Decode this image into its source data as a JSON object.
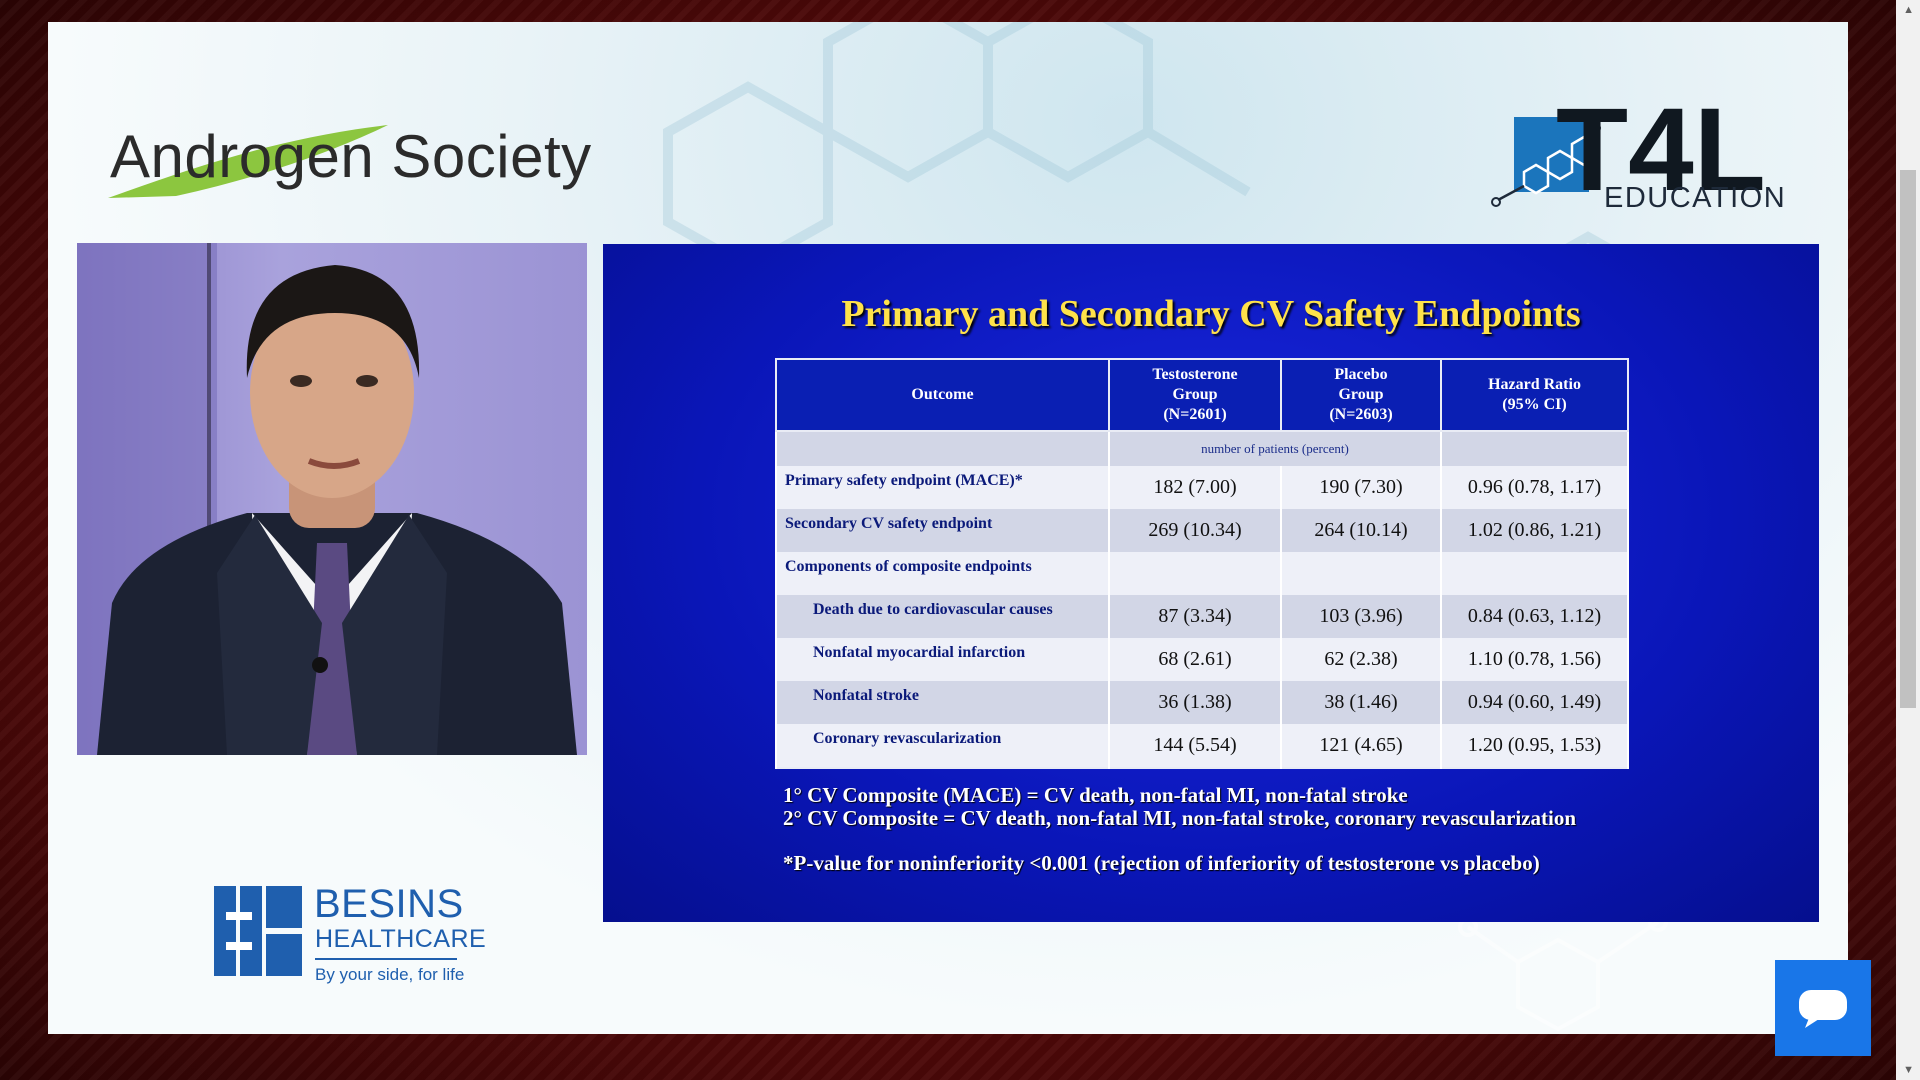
{
  "sponsor_logo": {
    "name": "Androgen Society"
  },
  "brand_logo": {
    "name": "T4L",
    "subtitle": "EDUCATION"
  },
  "slide": {
    "title": "Primary and Secondary CV Safety Endpoints",
    "table": {
      "headers": [
        "Outcome",
        "Testosterone Group (N=2601)",
        "Placebo Group (N=2603)",
        "Hazard Ratio (95% CI)"
      ],
      "header_lines": [
        [
          "Outcome"
        ],
        [
          "Testosterone",
          "Group",
          "(N=2601)"
        ],
        [
          "Placebo",
          "Group",
          "(N=2603)"
        ],
        [
          "Hazard Ratio",
          "(95% CI)"
        ]
      ],
      "units_note": "number of patients (percent)",
      "rows": [
        {
          "label": "Primary safety endpoint (MACE)*",
          "testosterone": "182 (7.00)",
          "placebo": "190 (7.30)",
          "hr": "0.96 (0.78, 1.17)",
          "indent": false
        },
        {
          "label": "Secondary CV safety endpoint",
          "testosterone": "269 (10.34)",
          "placebo": "264 (10.14)",
          "hr": "1.02 (0.86, 1.21)",
          "indent": false
        },
        {
          "label": "Components of composite endpoints",
          "testosterone": "",
          "placebo": "",
          "hr": "",
          "indent": false
        },
        {
          "label": "Death due to cardiovascular causes",
          "testosterone": "87 (3.34)",
          "placebo": "103 (3.96)",
          "hr": "0.84 (0.63, 1.12)",
          "indent": true
        },
        {
          "label": "Nonfatal myocardial infarction",
          "testosterone": "68 (2.61)",
          "placebo": "62 (2.38)",
          "hr": "1.10 (0.78, 1.56)",
          "indent": true
        },
        {
          "label": "Nonfatal stroke",
          "testosterone": "36 (1.38)",
          "placebo": "38 (1.46)",
          "hr": "0.94 (0.60, 1.49)",
          "indent": true
        },
        {
          "label": "Coronary revascularization",
          "testosterone": "144 (5.54)",
          "placebo": "121 (4.65)",
          "hr": "1.20 (0.95, 1.53)",
          "indent": true
        }
      ]
    },
    "notes": {
      "primary": "1° CV Composite (MACE) = CV death, non-fatal MI, non-fatal stroke",
      "secondary": "2° CV Composite = CV death, non-fatal MI, non-fatal stroke, coronary revascularization",
      "pvalue": "*P-value for noninferiority <0.001 (rejection of inferiority of testosterone vs placebo)"
    }
  },
  "footer_logo": {
    "name": "BESINS",
    "sub": "HEALTHCARE",
    "tagline": "By your side, for life"
  },
  "colors": {
    "slide_bg": "#0a16b8",
    "title": "#ffe24a",
    "table_header": "#0a1fb3",
    "besins_blue": "#1f5fae",
    "androgen_green": "#8cc63f",
    "t4l_blue": "#1b75bc",
    "chat_button": "#1976e8"
  },
  "chat_button": {
    "icon": "chat-bubble-icon"
  }
}
